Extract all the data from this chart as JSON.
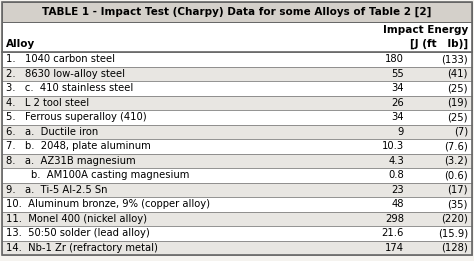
{
  "title": "TABLE 1 - Impact Test (Charpy) Data for some Alloys of Table 2 [2]",
  "col_header_left": "Alloy",
  "col_header_right_line1": "Impact Energy",
  "col_header_right_line2": "[J (ft   lb)]",
  "rows": [
    {
      "alloy": "1.   1040 carbon steel",
      "j": "180",
      "ftlb": "(133)"
    },
    {
      "alloy": "2.   8630 low-alloy steel",
      "j": "55",
      "ftlb": "(41)"
    },
    {
      "alloy": "3.   c.  410 stainless steel",
      "j": "34",
      "ftlb": "(25)"
    },
    {
      "alloy": "4.   L 2 tool steel",
      "j": "26",
      "ftlb": "(19)"
    },
    {
      "alloy": "5.   Ferrous superalloy (410)",
      "j": "34",
      "ftlb": "(25)"
    },
    {
      "alloy": "6.   a.  Ductile iron",
      "j": "9",
      "ftlb": "(7)"
    },
    {
      "alloy": "7.   b.  2048, plate aluminum",
      "j": "10.3",
      "ftlb": "(7.6)"
    },
    {
      "alloy": "8.   a.  AZ31B magnesium",
      "j": "4.3",
      "ftlb": "(3.2)"
    },
    {
      "alloy": "        b.  AM100A casting magnesium",
      "j": "0.8",
      "ftlb": "(0.6)"
    },
    {
      "alloy": "9.   a.  Ti-5 Al-2.5 Sn",
      "j": "23",
      "ftlb": "(17)"
    },
    {
      "alloy": "10.  Aluminum bronze, 9% (copper alloy)",
      "j": "48",
      "ftlb": "(35)"
    },
    {
      "alloy": "11.  Monel 400 (nickel alloy)",
      "j": "298",
      "ftlb": "(220)"
    },
    {
      "alloy": "13.  50:50 solder (lead alloy)",
      "j": "21.6",
      "ftlb": "(15.9)"
    },
    {
      "alloy": "14.  Nb-1 Zr (refractory metal)",
      "j": "174",
      "ftlb": "(128)"
    }
  ],
  "title_bg": "#d4d0ca",
  "white_row": "#ffffff",
  "gray_row": "#e8e6e2",
  "header_row_bg": "#ffffff",
  "border_color": "#666666",
  "text_color": "#000000",
  "title_fontsize": 7.5,
  "header_fontsize": 7.5,
  "row_fontsize": 7.2
}
